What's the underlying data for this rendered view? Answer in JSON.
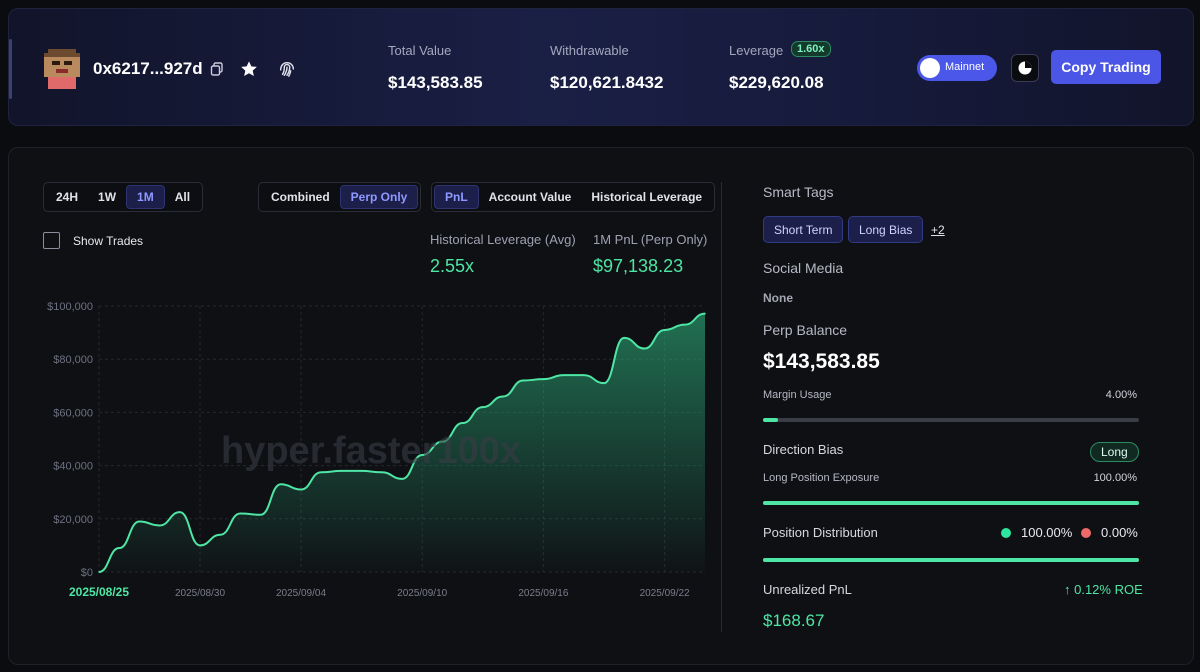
{
  "header": {
    "address": "0x6217...927d",
    "stats": [
      {
        "label": "Total Value",
        "value": "$143,583.85"
      },
      {
        "label": "Withdrawable",
        "value": "$120,621.8432"
      },
      {
        "label": "Leverage",
        "value": "$229,620.08",
        "badge": "1.60x"
      }
    ],
    "network_toggle_label": "Mainnet",
    "copy_trading_label": "Copy Trading"
  },
  "controls": {
    "range_tabs": [
      "24H",
      "1W",
      "1M",
      "All"
    ],
    "range_active": "1M",
    "mode_tabs": [
      "Combined",
      "Perp Only"
    ],
    "mode_active": "Perp Only",
    "metric_tabs": [
      "PnL",
      "Account Value",
      "Historical Leverage"
    ],
    "metric_active": "PnL",
    "show_trades_label": "Show Trades"
  },
  "metrics": {
    "leverage_label": "Historical Leverage (Avg)",
    "leverage_value": "2.55x",
    "pnl_label": "1M PnL (Perp Only)",
    "pnl_value": "$97,138.23"
  },
  "watermark": "hyper.faster100x",
  "chart_data": {
    "type": "area",
    "x_tick_labels": [
      "2025/08/25",
      "2025/08/30",
      "2025/09/04",
      "2025/09/10",
      "2025/09/16",
      "2025/09/22"
    ],
    "y_tick_labels": [
      "$0",
      "$20,000",
      "$40,000",
      "$60,000",
      "$80,000",
      "$100,000"
    ],
    "ylim": [
      0,
      100000
    ],
    "x": [
      "2025/08/25",
      "2025/08/26",
      "2025/08/27",
      "2025/08/28",
      "2025/08/29",
      "2025/08/30",
      "2025/08/31",
      "2025/09/01",
      "2025/09/02",
      "2025/09/03",
      "2025/09/04",
      "2025/09/05",
      "2025/09/06",
      "2025/09/07",
      "2025/09/08",
      "2025/09/09",
      "2025/09/10",
      "2025/09/11",
      "2025/09/12",
      "2025/09/13",
      "2025/09/14",
      "2025/09/15",
      "2025/09/16",
      "2025/09/17",
      "2025/09/18",
      "2025/09/19",
      "2025/09/20",
      "2025/09/21",
      "2025/09/22",
      "2025/09/23",
      "2025/09/24"
    ],
    "values": [
      0,
      9000,
      19000,
      17500,
      22500,
      10000,
      14000,
      22000,
      21500,
      33000,
      31000,
      37500,
      38000,
      38000,
      37500,
      35000,
      44000,
      49000,
      56000,
      62000,
      66000,
      72000,
      72500,
      74000,
      74000,
      71000,
      88000,
      84000,
      91000,
      93000,
      97138
    ],
    "line_color": "#4ee6a4"
  },
  "right_panel": {
    "smart_tags_heading": "Smart Tags",
    "tags": [
      "Short Term",
      "Long Bias"
    ],
    "tags_more": "+2",
    "social_heading": "Social Media",
    "social_value": "None",
    "perp_balance_heading": "Perp Balance",
    "perp_balance_value": "$143,583.85",
    "margin_usage_label": "Margin Usage",
    "margin_usage_value": "4.00%",
    "margin_usage_fraction": 0.04,
    "direction_bias_label": "Direction Bias",
    "direction_bias_value": "Long",
    "long_exposure_label": "Long Position Exposure",
    "long_exposure_value": "100.00%",
    "long_exposure_fraction": 1.0,
    "position_distribution_label": "Position Distribution",
    "long_pct": "100.00%",
    "short_pct": "0.00%",
    "long_color": "#2ee59d",
    "short_color": "#f06969",
    "unrealized_pnl_label": "Unrealized PnL",
    "roe_value": "↑ 0.12% ROE",
    "unrealized_pnl_value": "$168.67"
  }
}
